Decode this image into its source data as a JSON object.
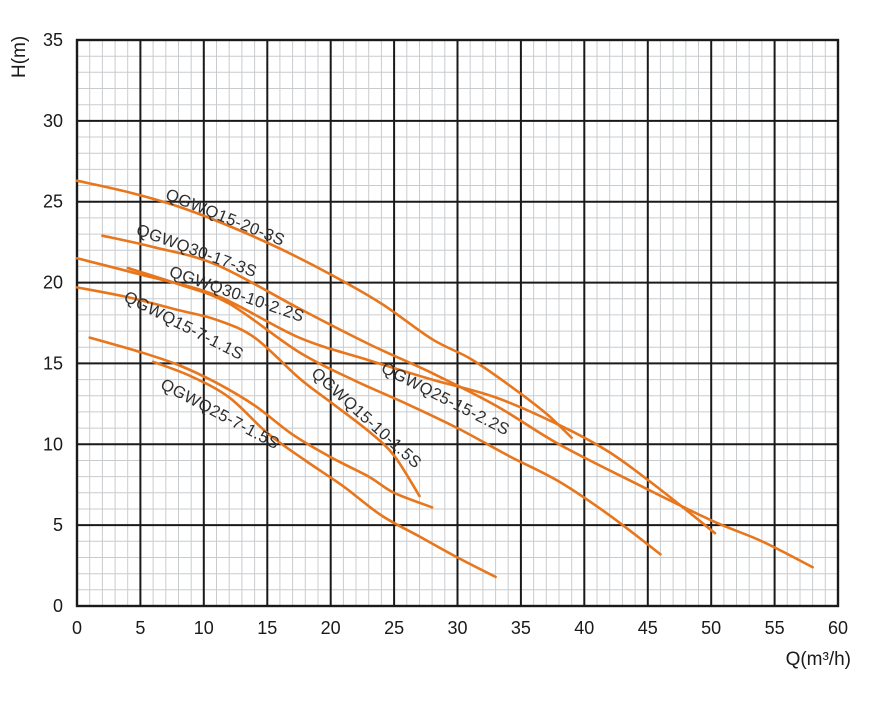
{
  "chart_data": {
    "type": "line",
    "title": "",
    "xlabel": "Q(m³/h)",
    "ylabel": "H(m)",
    "xlim": [
      0,
      60
    ],
    "ylim": [
      0,
      35
    ],
    "x_ticks": [
      0,
      5,
      10,
      15,
      20,
      25,
      30,
      35,
      40,
      45,
      50,
      55,
      60
    ],
    "y_ticks": [
      0,
      5,
      10,
      15,
      20,
      25,
      30,
      35
    ],
    "grid": {
      "major_step": 5,
      "minor_step": 1,
      "major_color": "#1a1a1a",
      "minor_color": "#c9cccf",
      "legend": "off"
    },
    "curve_color": "#E8761C",
    "series": [
      {
        "name": "QGWQ15-20-3S",
        "points": [
          [
            0,
            26.3
          ],
          [
            4,
            25.6
          ],
          [
            8,
            24.7
          ],
          [
            12,
            23.5
          ],
          [
            16,
            22.1
          ],
          [
            20,
            20.5
          ],
          [
            24,
            18.7
          ],
          [
            28,
            16.5
          ],
          [
            31,
            15.3
          ],
          [
            34,
            13.7
          ],
          [
            37,
            11.9
          ],
          [
            39,
            10.4
          ]
        ],
        "label": {
          "q": 6.9,
          "h": 25.2,
          "rot": 22
        }
      },
      {
        "name": "QGWQ30-17-3S",
        "points": [
          [
            2,
            22.9
          ],
          [
            6,
            22.2
          ],
          [
            11,
            21.1
          ],
          [
            17.5,
            18.4
          ],
          [
            23,
            16.2
          ],
          [
            28,
            14.4
          ],
          [
            33,
            12.4
          ],
          [
            38,
            10.0
          ],
          [
            44,
            7.6
          ],
          [
            50,
            5.3
          ],
          [
            54,
            4.0
          ],
          [
            58,
            2.4
          ]
        ],
        "label": {
          "q": 4.6,
          "h": 23.0,
          "rot": 20
        }
      },
      {
        "name": "QGWQ30-10-2.2S",
        "points": [
          [
            0,
            21.5
          ],
          [
            5,
            20.5
          ],
          [
            11,
            19.2
          ],
          [
            17.5,
            16.6
          ],
          [
            23,
            15.2
          ],
          [
            28,
            14.0
          ],
          [
            33,
            12.9
          ],
          [
            38,
            11.2
          ],
          [
            42,
            9.5
          ],
          [
            46,
            7.2
          ],
          [
            50.3,
            4.5
          ]
        ],
        "label": {
          "q": 7.2,
          "h": 20.4,
          "rot": 19
        }
      },
      {
        "name": "QGWQ15-7-1.1S",
        "points": [
          [
            0,
            19.7
          ],
          [
            4,
            19.1
          ],
          [
            8,
            18.3
          ],
          [
            11,
            17.7
          ],
          [
            14,
            16.6
          ],
          [
            17.5,
            14.1
          ],
          [
            20,
            12.6
          ],
          [
            23,
            10.8
          ],
          [
            25,
            9.3
          ],
          [
            27,
            6.8
          ]
        ],
        "label": {
          "q": 3.6,
          "h": 18.9,
          "rot": 27
        }
      },
      {
        "name": "QGWQ25-15-2.2S",
        "points": [
          [
            4,
            20.9
          ],
          [
            8,
            19.9
          ],
          [
            12,
            18.7
          ],
          [
            17.5,
            15.7
          ],
          [
            22,
            13.9
          ],
          [
            26,
            12.5
          ],
          [
            30,
            11.0
          ],
          [
            34,
            9.3
          ],
          [
            38,
            7.7
          ],
          [
            42,
            5.6
          ],
          [
            46,
            3.2
          ]
        ],
        "label": {
          "q": 23.9,
          "h": 14.5,
          "rot": 27
        }
      },
      {
        "name": "QGWQ15-10-1.5S",
        "points": [
          [
            6,
            15.1
          ],
          [
            9,
            14.2
          ],
          [
            12,
            12.9
          ],
          [
            15,
            10.7
          ],
          [
            18,
            9.0
          ],
          [
            21,
            7.4
          ],
          [
            24,
            5.6
          ],
          [
            27,
            4.3
          ],
          [
            30,
            3.0
          ],
          [
            33,
            1.8
          ]
        ],
        "label": {
          "q": 18.4,
          "h": 14.3,
          "rot": 42
        }
      },
      {
        "name": "QGWQ25-7-1.5S",
        "points": [
          [
            1,
            16.6
          ],
          [
            5,
            15.7
          ],
          [
            8,
            14.9
          ],
          [
            11,
            13.8
          ],
          [
            14,
            12.4
          ],
          [
            17,
            10.6
          ],
          [
            20,
            9.2
          ],
          [
            23,
            8.0
          ],
          [
            25,
            7.0
          ],
          [
            28,
            6.1
          ]
        ],
        "label": {
          "q": 6.5,
          "h": 13.5,
          "rot": 28
        }
      }
    ]
  }
}
